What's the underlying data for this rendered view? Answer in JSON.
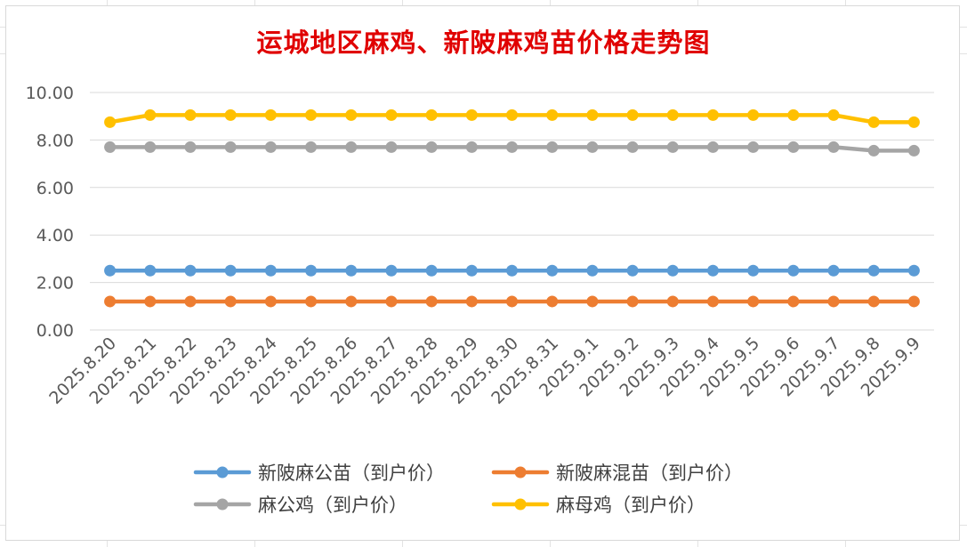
{
  "chart_data": {
    "type": "line",
    "title": "运城地区麻鸡、新陂麻鸡苗价格走势图",
    "xlabel": "",
    "ylabel": "",
    "ylim": [
      0,
      10
    ],
    "yticks": [
      "0.00",
      "2.00",
      "4.00",
      "6.00",
      "8.00",
      "10.00"
    ],
    "categories": [
      "2025.8.20",
      "2025.8.21",
      "2025.8.22",
      "2025.8.23",
      "2025.8.24",
      "2025.8.25",
      "2025.8.26",
      "2025.8.27",
      "2025.8.28",
      "2025.8.29",
      "2025.8.30",
      "2025.8.31",
      "2025.9.1",
      "2025.9.2",
      "2025.9.3",
      "2025.9.4",
      "2025.9.5",
      "2025.9.6",
      "2025.9.7",
      "2025.9.8",
      "2025.9.9"
    ],
    "series": [
      {
        "name": "新陂麻公苗（到户价）",
        "color": "#5b9bd5",
        "values": [
          2.5,
          2.5,
          2.5,
          2.5,
          2.5,
          2.5,
          2.5,
          2.5,
          2.5,
          2.5,
          2.5,
          2.5,
          2.5,
          2.5,
          2.5,
          2.5,
          2.5,
          2.5,
          2.5,
          2.5,
          2.5
        ]
      },
      {
        "name": "新陂麻混苗（到户价）",
        "color": "#ed7d31",
        "values": [
          1.2,
          1.2,
          1.2,
          1.2,
          1.2,
          1.2,
          1.2,
          1.2,
          1.2,
          1.2,
          1.2,
          1.2,
          1.2,
          1.2,
          1.2,
          1.2,
          1.2,
          1.2,
          1.2,
          1.2,
          1.2
        ]
      },
      {
        "name": "麻公鸡（到户价）",
        "color": "#a5a5a5",
        "values": [
          7.7,
          7.7,
          7.7,
          7.7,
          7.7,
          7.7,
          7.7,
          7.7,
          7.7,
          7.7,
          7.7,
          7.7,
          7.7,
          7.7,
          7.7,
          7.7,
          7.7,
          7.7,
          7.7,
          7.55,
          7.55
        ]
      },
      {
        "name": "麻母鸡（到户价）",
        "color": "#ffc000",
        "values": [
          8.75,
          9.05,
          9.05,
          9.05,
          9.05,
          9.05,
          9.05,
          9.05,
          9.05,
          9.05,
          9.05,
          9.05,
          9.05,
          9.05,
          9.05,
          9.05,
          9.05,
          9.05,
          9.05,
          8.75,
          8.75
        ]
      }
    ],
    "legend_position": "bottom",
    "grid": true
  }
}
